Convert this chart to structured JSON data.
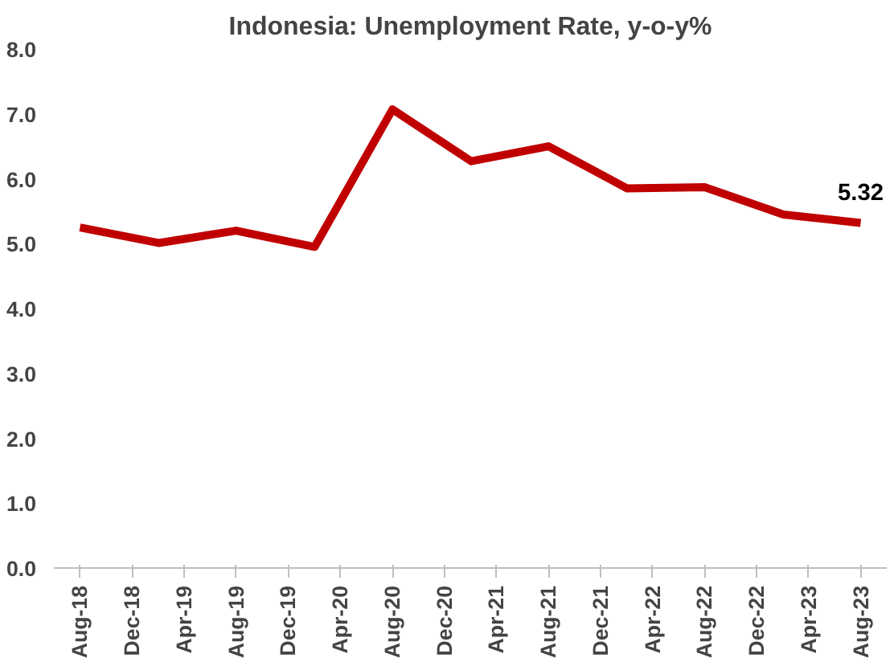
{
  "chart_data": {
    "type": "line",
    "title": "Indonesia: Unemployment Rate, y-o-y%",
    "x": [
      "2018-08",
      "2019-02",
      "2019-08",
      "2020-02",
      "2020-08",
      "2021-02",
      "2021-08",
      "2022-02",
      "2022-08",
      "2023-02",
      "2023-08"
    ],
    "series": [
      {
        "color": "#c00000",
        "values": [
          5.25,
          5.01,
          5.2,
          4.95,
          7.07,
          6.27,
          6.5,
          5.85,
          5.87,
          5.45,
          5.32
        ]
      }
    ],
    "xlim": [
      "2018-06",
      "2023-10"
    ],
    "xticks": [
      {
        "value": "2018-08",
        "label": "Aug-18"
      },
      {
        "value": "2018-12",
        "label": "Dec-18"
      },
      {
        "value": "2019-04",
        "label": "Apr-19"
      },
      {
        "value": "2019-08",
        "label": "Aug-19"
      },
      {
        "value": "2019-12",
        "label": "Dec-19"
      },
      {
        "value": "2020-04",
        "label": "Apr-20"
      },
      {
        "value": "2020-08",
        "label": "Aug-20"
      },
      {
        "value": "2020-12",
        "label": "Dec-20"
      },
      {
        "value": "2021-04",
        "label": "Apr-21"
      },
      {
        "value": "2021-08",
        "label": "Aug-21"
      },
      {
        "value": "2021-12",
        "label": "Dec-21"
      },
      {
        "value": "2022-04",
        "label": "Apr-22"
      },
      {
        "value": "2022-08",
        "label": "Aug-22"
      },
      {
        "value": "2022-12",
        "label": "Dec-22"
      },
      {
        "value": "2023-04",
        "label": "Apr-23"
      },
      {
        "value": "2023-08",
        "label": "Aug-23"
      }
    ],
    "ylim": [
      0,
      8
    ],
    "yticks": [
      {
        "value": 0,
        "label": "0.0"
      },
      {
        "value": 1,
        "label": "1.0"
      },
      {
        "value": 2,
        "label": "2.0"
      },
      {
        "value": 3,
        "label": "3.0"
      },
      {
        "value": 4,
        "label": "4.0"
      },
      {
        "value": 5,
        "label": "5.0"
      },
      {
        "value": 6,
        "label": "6.0"
      },
      {
        "value": 7,
        "label": "7.0"
      },
      {
        "value": 8,
        "label": "8.0"
      }
    ],
    "annotations": [
      {
        "text": "5.32",
        "x": "2023-08",
        "y": 5.32
      }
    ],
    "grid": false,
    "marker": "none",
    "line_style": "solid"
  }
}
